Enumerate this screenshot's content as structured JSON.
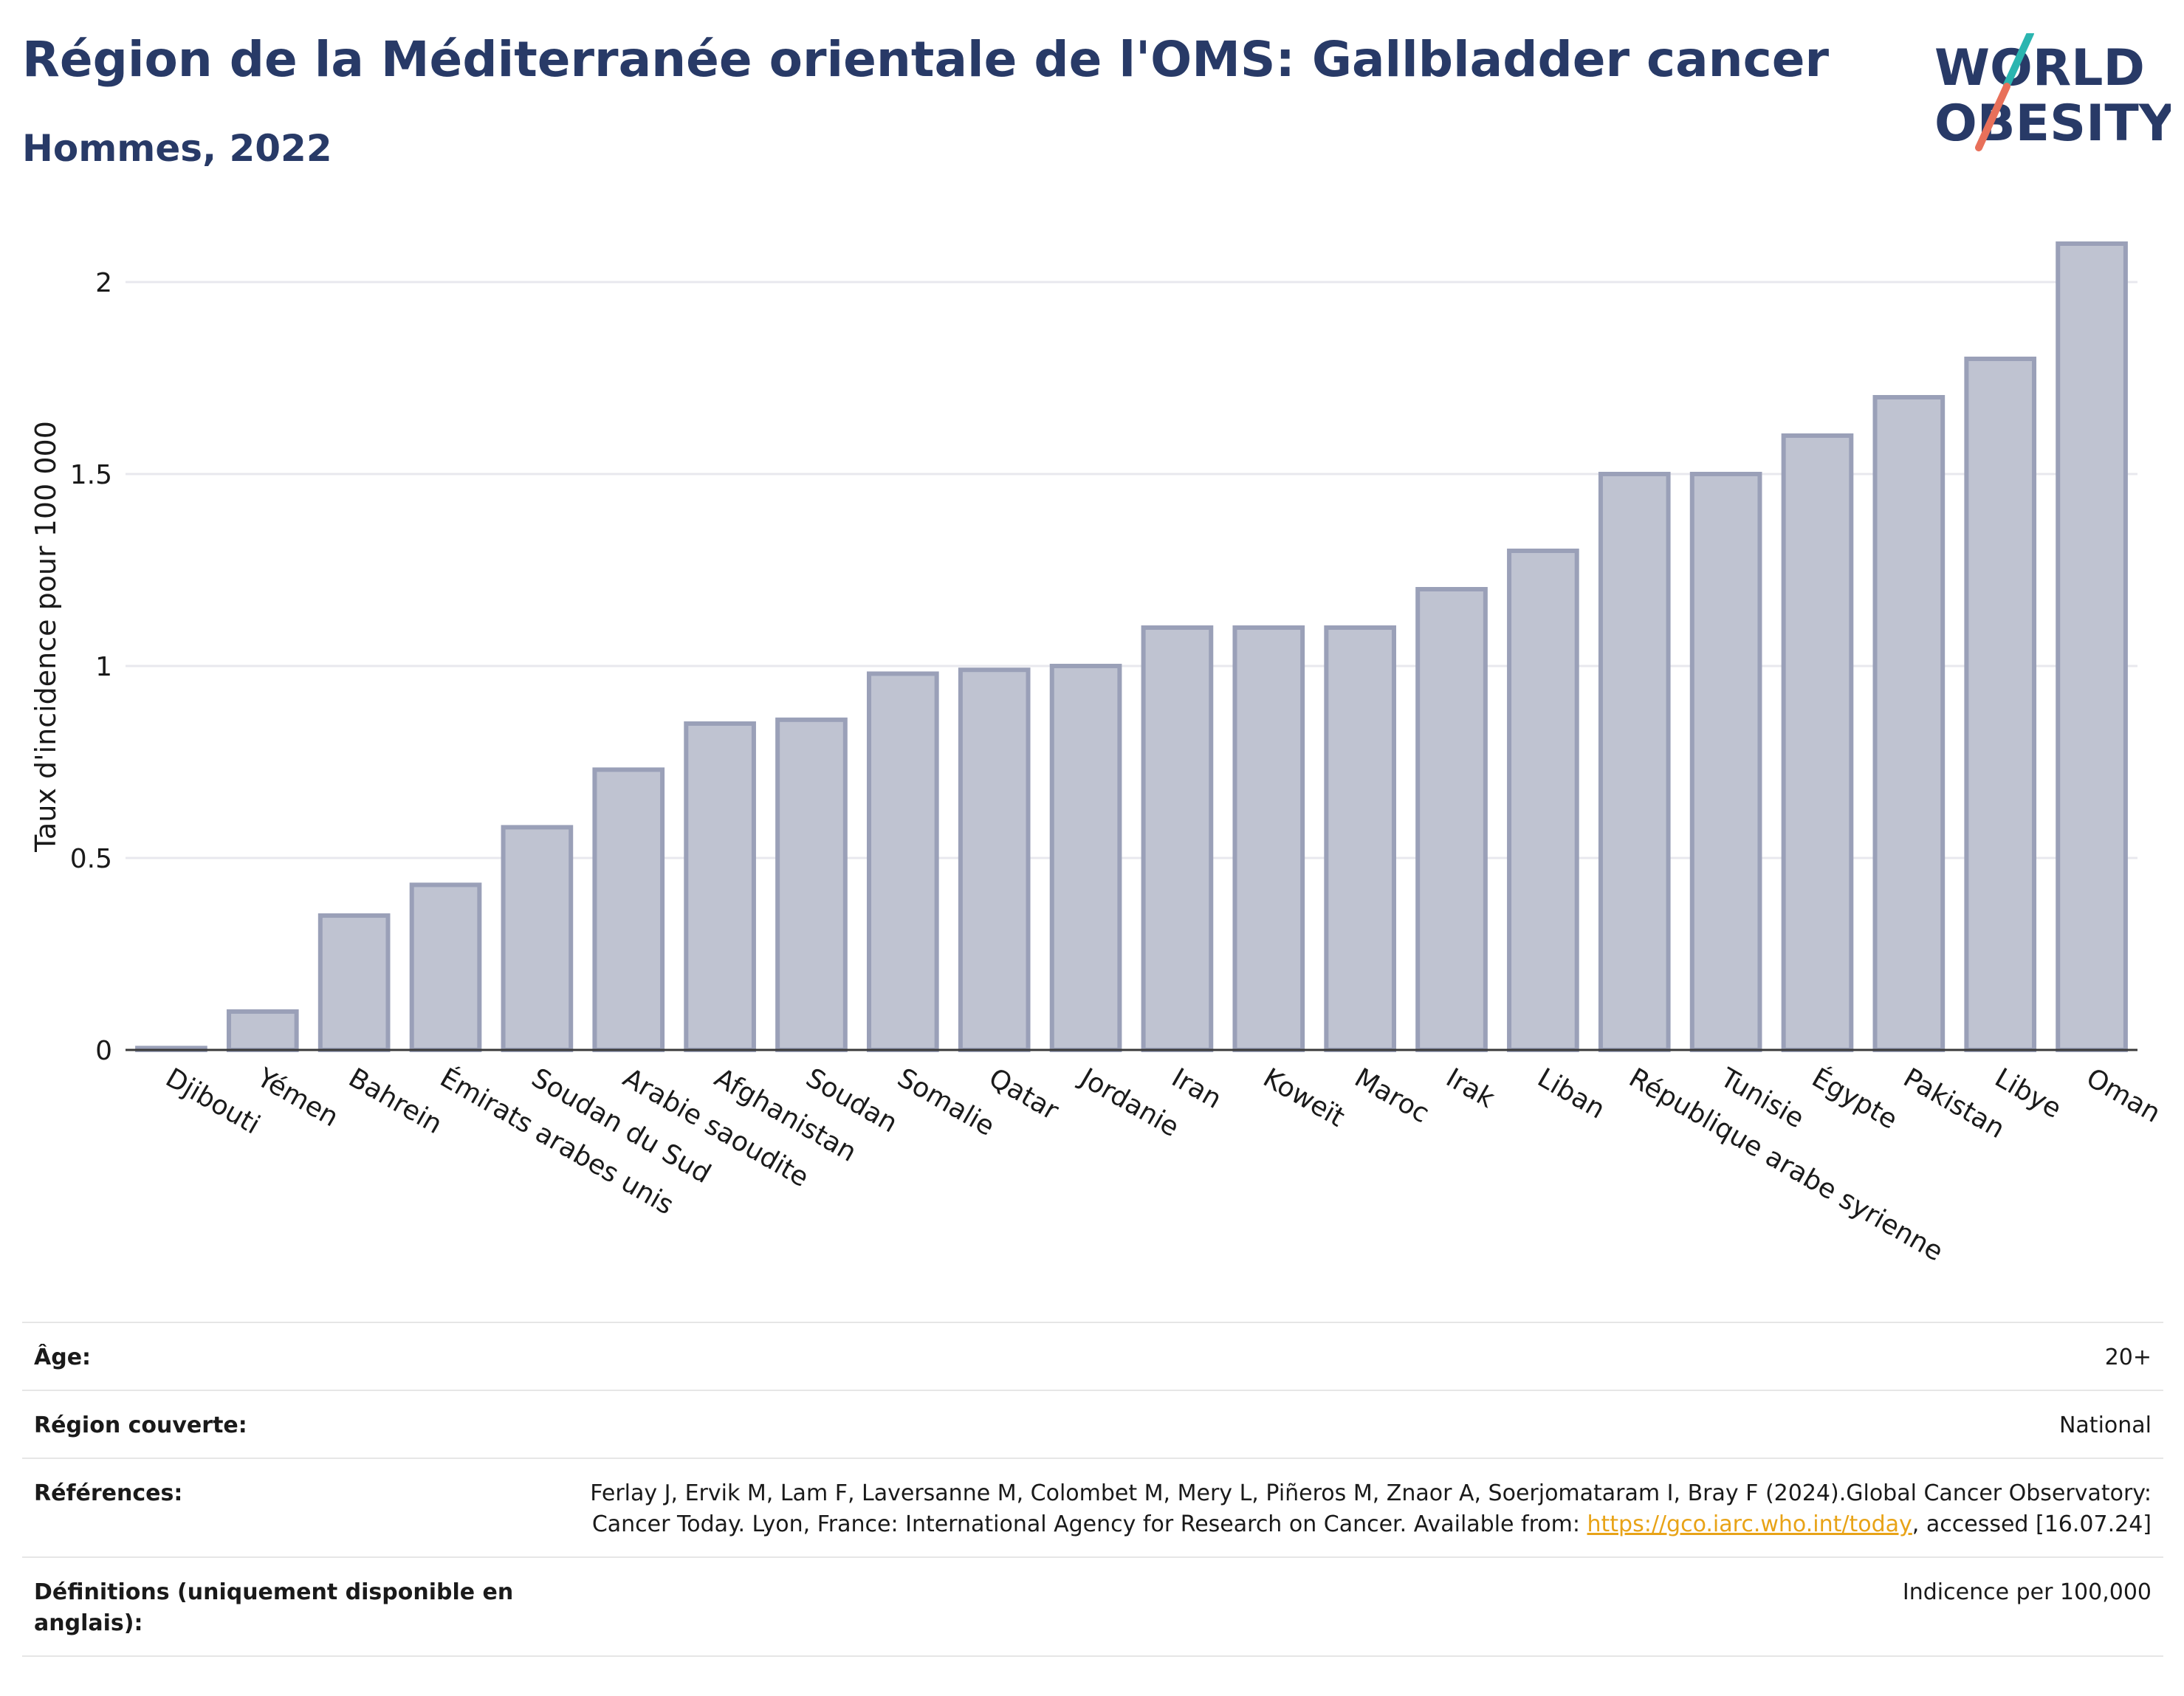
{
  "header": {
    "title": "Région de la Méditerranée orientale de l'OMS: Gallbladder cancer",
    "subtitle": "Hommes, 2022"
  },
  "logo": {
    "line1": "WORLD",
    "line2": "OBESITY",
    "accent_colors": [
      "#2bb5b0",
      "#e8705a"
    ],
    "text_color": "#283a67"
  },
  "chart_data": {
    "type": "bar",
    "title": "Région de la Méditerranée orientale de l'OMS: Gallbladder cancer",
    "subtitle": "Hommes, 2022",
    "xlabel": "",
    "ylabel": "Taux d'incidence pour 100 000",
    "ylim": [
      0,
      2.1
    ],
    "yticks": [
      0,
      0.5,
      1,
      1.5,
      2
    ],
    "ytick_labels": [
      "0",
      "0.5",
      "1",
      "1.5",
      "2"
    ],
    "grid": true,
    "bar_fill": "#bfc3d1",
    "bar_stroke": "#9aa0b8",
    "categories": [
      "Djibouti",
      "Yémen",
      "Bahrein",
      "Émirats arabes unis",
      "Soudan du Sud",
      "Arabie saoudite",
      "Afghanistan",
      "Soudan",
      "Somalie",
      "Qatar",
      "Jordanie",
      "Iran",
      "Koweït",
      "Maroc",
      "Irak",
      "Liban",
      "République arabe syrienne",
      "Tunisie",
      "Égypte",
      "Pakistan",
      "Libye",
      "Oman"
    ],
    "values": [
      0.005,
      0.1,
      0.35,
      0.43,
      0.58,
      0.73,
      0.85,
      0.86,
      0.98,
      0.99,
      1.0,
      1.1,
      1.1,
      1.1,
      1.2,
      1.3,
      1.5,
      1.5,
      1.6,
      1.7,
      1.8,
      2.1
    ]
  },
  "info": {
    "age_label": "Âge:",
    "age_value": "20+",
    "region_label": "Région couverte:",
    "region_value": "National",
    "ref_label": "Références:",
    "ref_text_1": "Ferlay J, Ervik M, Lam F, Laversanne M, Colombet M, Mery L, Piñeros M, Znaor A, Soerjomataram I, Bray F (2024).Global Cancer Observatory: Cancer Today. Lyon, France: International Agency for Research on Cancer. Available from: ",
    "ref_link": "https://gco.iarc.who.int/today",
    "ref_text_2": ", accessed [16.07.24]",
    "def_label": "Définitions (uniquement disponible en anglais):",
    "def_value": "Indicence per 100,000"
  }
}
